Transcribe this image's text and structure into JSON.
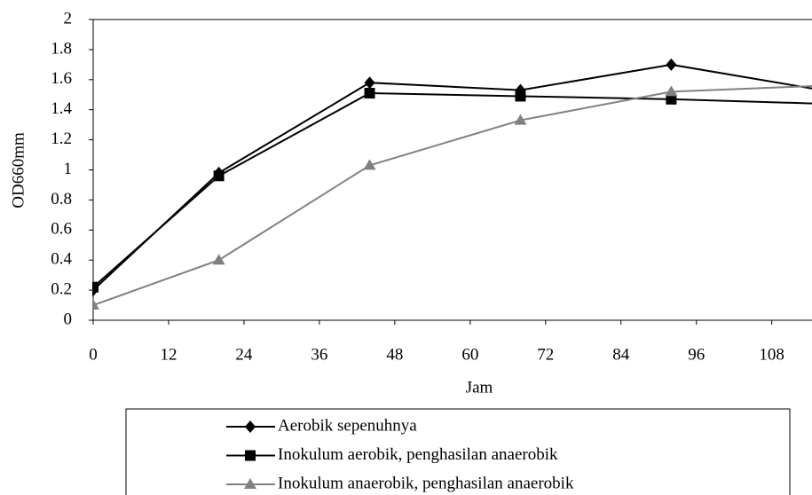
{
  "chart_data": {
    "type": "line",
    "x": [
      0,
      20,
      44,
      68,
      92,
      116
    ],
    "series": [
      {
        "name": "Aerobik sepenuhnya",
        "color": "#000000",
        "marker": "diamond",
        "values": [
          0.2,
          0.98,
          1.58,
          1.53,
          1.7,
          1.53
        ]
      },
      {
        "name": "Inokulum aerobik, penghasilan anaerobik",
        "color": "#000000",
        "marker": "square",
        "values": [
          0.22,
          0.96,
          1.51,
          1.49,
          1.47,
          1.44
        ]
      },
      {
        "name": "Inokulum anaerobik, penghasilan anaerobik",
        "color": "#808080",
        "marker": "triangle",
        "values": [
          0.1,
          0.4,
          1.03,
          1.33,
          1.52,
          1.56
        ]
      }
    ],
    "xlabel": "Jam",
    "ylabel": "OD660mm",
    "xlim": [
      0,
      114.4
    ],
    "xticks": [
      0,
      12,
      24,
      36,
      48,
      60,
      72,
      84,
      96,
      108
    ],
    "ylim": [
      0,
      2
    ],
    "yticks": [
      0,
      0.2,
      0.4,
      0.6,
      0.8,
      1,
      1.2,
      1.4,
      1.6,
      1.8,
      2
    ],
    "grid": false,
    "legend": "bottom"
  }
}
